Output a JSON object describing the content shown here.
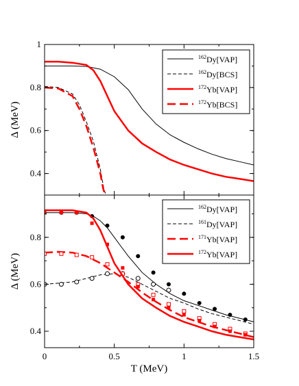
{
  "chart_data": [
    {
      "type": "line",
      "panel": "top",
      "xlabel": "",
      "ylabel": "Δ (MeV)",
      "xlim": [
        0,
        1.5
      ],
      "ylim": [
        0.3,
        1.0
      ],
      "y_ticks": [
        0.4,
        0.6,
        0.8,
        1.0
      ],
      "y_tick_labels": [
        "0.4",
        "0.6",
        "0.8",
        "1"
      ],
      "x_ticks": [
        0,
        0.5,
        1,
        1.5
      ],
      "x_tick_labels": [],
      "grid": false,
      "legend_position": "top-right",
      "series": [
        {
          "name": "Dy[VAP]",
          "mass": "162",
          "color": "#000000",
          "style": "solid",
          "width": 1,
          "x": [
            0,
            0.1,
            0.2,
            0.3,
            0.4,
            0.5,
            0.6,
            0.7,
            0.8,
            0.9,
            1.0,
            1.1,
            1.2,
            1.3,
            1.4,
            1.5
          ],
          "y": [
            0.9,
            0.9,
            0.9,
            0.898,
            0.885,
            0.85,
            0.79,
            0.7,
            0.63,
            0.58,
            0.545,
            0.515,
            0.49,
            0.47,
            0.455,
            0.44
          ]
        },
        {
          "name": "Dy[BCS]",
          "mass": "162",
          "color": "#000000",
          "style": "dashed",
          "width": 1,
          "x": [
            0,
            0.1,
            0.2,
            0.25,
            0.3,
            0.35,
            0.4,
            0.425,
            0.44
          ],
          "y": [
            0.805,
            0.8,
            0.77,
            0.72,
            0.64,
            0.55,
            0.42,
            0.33,
            0.3
          ]
        },
        {
          "name": "Yb[VAP]",
          "mass": "172",
          "color": "#ff0000",
          "style": "solid",
          "width": 2.5,
          "x": [
            0,
            0.1,
            0.2,
            0.3,
            0.35,
            0.4,
            0.45,
            0.5,
            0.6,
            0.7,
            0.8,
            0.9,
            1.0,
            1.1,
            1.2,
            1.3,
            1.4,
            1.5
          ],
          "y": [
            0.92,
            0.92,
            0.915,
            0.905,
            0.88,
            0.83,
            0.76,
            0.69,
            0.6,
            0.54,
            0.5,
            0.465,
            0.44,
            0.42,
            0.4,
            0.385,
            0.375,
            0.365
          ]
        },
        {
          "name": "Yb[BCS]",
          "mass": "172",
          "color": "#ff0000",
          "style": "dashed",
          "width": 2.5,
          "x": [
            0,
            0.1,
            0.2,
            0.25,
            0.3,
            0.35,
            0.4,
            0.42,
            0.435
          ],
          "y": [
            0.8,
            0.795,
            0.76,
            0.7,
            0.62,
            0.52,
            0.4,
            0.33,
            0.3
          ]
        }
      ]
    },
    {
      "type": "line",
      "panel": "bottom",
      "xlabel": "T (MeV)",
      "ylabel": "Δ (MeV)",
      "xlim": [
        0,
        1.5
      ],
      "ylim": [
        0.33,
        0.98
      ],
      "y_ticks": [
        0.4,
        0.6,
        0.8
      ],
      "y_tick_labels": [
        "0.4",
        "0.6",
        "0.8"
      ],
      "x_ticks": [
        0,
        0.5,
        1,
        1.5
      ],
      "x_tick_labels": [
        "0",
        "0.5",
        "1",
        "1.5"
      ],
      "grid": false,
      "legend_position": "top-right",
      "series": [
        {
          "name": "Dy[VAP]",
          "mass": "162",
          "color": "#000000",
          "style": "solid",
          "width": 1,
          "x": [
            0,
            0.1,
            0.2,
            0.3,
            0.35,
            0.4,
            0.45,
            0.5,
            0.55,
            0.6,
            0.7,
            0.8,
            0.9,
            1.0,
            1.1,
            1.2,
            1.3,
            1.4,
            1.5
          ],
          "y": [
            0.905,
            0.905,
            0.905,
            0.9,
            0.89,
            0.87,
            0.84,
            0.8,
            0.76,
            0.72,
            0.65,
            0.6,
            0.56,
            0.53,
            0.51,
            0.49,
            0.47,
            0.455,
            0.44
          ],
          "markers": {
            "shape": "circle-filled",
            "x": [
              0,
              0.12,
              0.23,
              0.34,
              0.45,
              0.56,
              0.67,
              0.78,
              0.89,
              1.0,
              1.11,
              1.22,
              1.33,
              1.44
            ],
            "y": [
              0.905,
              0.905,
              0.905,
              0.89,
              0.85,
              0.8,
              0.72,
              0.65,
              0.6,
              0.56,
              0.52,
              0.495,
              0.47,
              0.45
            ]
          }
        },
        {
          "name": "Dy[VAP]",
          "mass": "161",
          "color": "#000000",
          "style": "dashed",
          "width": 1,
          "x": [
            0,
            0.1,
            0.2,
            0.3,
            0.4,
            0.5,
            0.6,
            0.7,
            0.8,
            0.9,
            1.0,
            1.1,
            1.2,
            1.3,
            1.4,
            1.5
          ],
          "y": [
            0.6,
            0.605,
            0.61,
            0.625,
            0.64,
            0.645,
            0.63,
            0.6,
            0.57,
            0.54,
            0.52,
            0.495,
            0.475,
            0.46,
            0.445,
            0.43
          ],
          "markers": {
            "shape": "circle-open",
            "x": [
              0,
              0.12,
              0.23,
              0.34,
              0.45,
              0.56,
              0.67,
              0.78,
              0.89
            ],
            "y": [
              0.6,
              0.6,
              0.61,
              0.625,
              0.645,
              0.645,
              0.625,
              0.6,
              0.575
            ]
          }
        },
        {
          "name": "Yb[VAP]",
          "mass": "171",
          "color": "#ff0000",
          "style": "dashed",
          "width": 2.5,
          "x": [
            0,
            0.1,
            0.2,
            0.3,
            0.4,
            0.5,
            0.6,
            0.7,
            0.8,
            0.9,
            1.0,
            1.1,
            1.2,
            1.3,
            1.4,
            1.5
          ],
          "y": [
            0.735,
            0.738,
            0.735,
            0.72,
            0.69,
            0.65,
            0.61,
            0.565,
            0.525,
            0.49,
            0.46,
            0.44,
            0.42,
            0.405,
            0.39,
            0.375
          ],
          "markers": {
            "shape": "square-open",
            "x": [
              0,
              0.12,
              0.23,
              0.34,
              0.45,
              0.56,
              0.67,
              0.78,
              0.89,
              1.0,
              1.11,
              1.22,
              1.33,
              1.44
            ],
            "y": [
              0.73,
              0.73,
              0.725,
              0.715,
              0.685,
              0.645,
              0.6,
              0.555,
              0.515,
              0.485,
              0.455,
              0.43,
              0.41,
              0.39
            ]
          }
        },
        {
          "name": "Yb[VAP]",
          "mass": "172",
          "color": "#ff0000",
          "style": "solid",
          "width": 2.5,
          "x": [
            0,
            0.1,
            0.2,
            0.3,
            0.35,
            0.4,
            0.45,
            0.5,
            0.6,
            0.7,
            0.8,
            0.9,
            1.0,
            1.1,
            1.2,
            1.3,
            1.4,
            1.5
          ],
          "y": [
            0.915,
            0.915,
            0.915,
            0.905,
            0.88,
            0.83,
            0.76,
            0.69,
            0.6,
            0.54,
            0.5,
            0.465,
            0.44,
            0.42,
            0.4,
            0.385,
            0.375,
            0.365
          ],
          "markers": {
            "shape": "square-filled",
            "x": [
              0,
              0.12,
              0.23,
              0.34,
              0.45,
              0.56,
              0.67,
              0.78,
              0.89,
              1.0,
              1.11,
              1.22,
              1.33,
              1.44
            ],
            "y": [
              0.905,
              0.905,
              0.905,
              0.86,
              0.77,
              0.67,
              0.59,
              0.535,
              0.5,
              0.47,
              0.445,
              0.42,
              0.4,
              0.385
            ]
          }
        }
      ]
    }
  ]
}
